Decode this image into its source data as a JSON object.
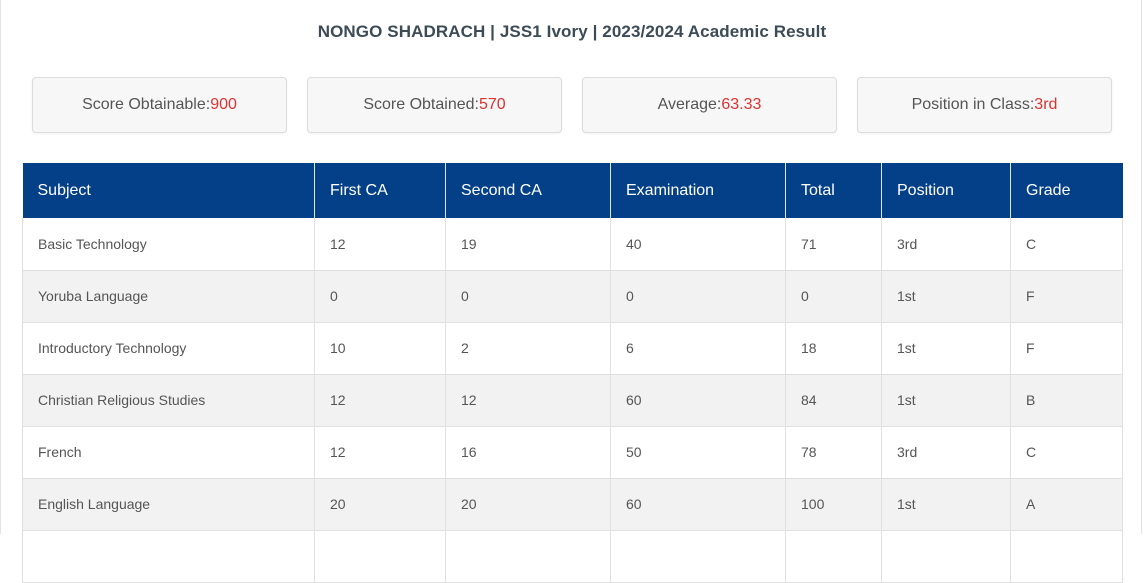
{
  "header": {
    "title": "NONGO SHADRACH | JSS1 Ivory | 2023/2024 Academic Result"
  },
  "summary": [
    {
      "label": "Score Obtainable: ",
      "value": "900"
    },
    {
      "label": "Score Obtained: ",
      "value": "570"
    },
    {
      "label": "Average: ",
      "value": "63.33"
    },
    {
      "label": "Position in Class: ",
      "value": "3rd"
    }
  ],
  "table": {
    "columns": [
      "Subject",
      "First CA",
      "Second CA",
      "Examination",
      "Total",
      "Position",
      "Grade"
    ],
    "rows": [
      [
        "Basic Technology",
        "12",
        "19",
        "40",
        "71",
        "3rd",
        "C"
      ],
      [
        "Yoruba Language",
        "0",
        "0",
        "0",
        "0",
        "1st",
        "F"
      ],
      [
        "Introductory Technology",
        "10",
        "2",
        "6",
        "18",
        "1st",
        "F"
      ],
      [
        "Christian Religious Studies",
        "12",
        "12",
        "60",
        "84",
        "1st",
        "B"
      ],
      [
        "French",
        "12",
        "16",
        "50",
        "78",
        "3rd",
        "C"
      ],
      [
        "English Language",
        "20",
        "20",
        "60",
        "100",
        "1st",
        "A"
      ],
      [
        "",
        "",
        "",
        "",
        "",
        "",
        ""
      ]
    ]
  },
  "colors": {
    "header_bg": "#034087",
    "value_red": "#e03131",
    "title_text": "#3c4b55"
  }
}
